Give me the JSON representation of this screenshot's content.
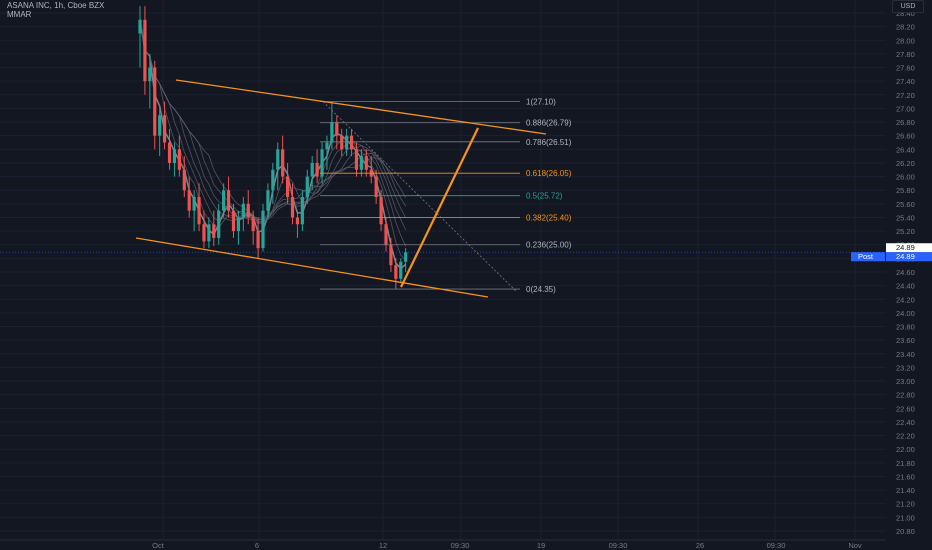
{
  "header": {
    "title": "ASANA INC, 1h, Cboe BZX",
    "indicator": "MMAR"
  },
  "currency_label": "USD",
  "post_label": "Post",
  "colors": {
    "background": "#131722",
    "up": "#26a69a",
    "down": "#ef5350",
    "drawing": "#f7931a",
    "fib_line": "#787b86",
    "price_tag": "#2962ff"
  },
  "chart_data": {
    "type": "candlestick",
    "title": "ASANA INC, 1h, Cboe BZX",
    "ylim": [
      20.8,
      28.5
    ],
    "y_ticks": [
      "28.40",
      "28.20",
      "28.00",
      "27.80",
      "27.60",
      "27.40",
      "27.20",
      "27.00",
      "26.80",
      "26.60",
      "26.40",
      "26.20",
      "26.00",
      "25.80",
      "25.60",
      "25.40",
      "25.20",
      "25.00",
      "24.80",
      "24.60",
      "24.40",
      "24.20",
      "24.00",
      "23.80",
      "23.60",
      "23.40",
      "23.20",
      "23.00",
      "22.80",
      "22.60",
      "22.40",
      "22.20",
      "22.00",
      "21.80",
      "21.60",
      "21.40",
      "21.20",
      "21.00",
      "20.80"
    ],
    "x_ticks": [
      "Oct",
      "6",
      "12",
      "09:30",
      "19",
      "09:30",
      "26",
      "09:30",
      "Nov"
    ],
    "last_price": [
      {
        "label": "24.89",
        "color": "#ffffff"
      },
      {
        "label": "24.89",
        "color": "#2962ff"
      }
    ],
    "fib_levels": [
      {
        "label": "1(27.10)",
        "price": 27.1,
        "color": "#b2b5be"
      },
      {
        "label": "0.886(26.79)",
        "price": 26.79,
        "color": "#b2b5be"
      },
      {
        "label": "0.786(26.51)",
        "price": 26.51,
        "color": "#b2b5be"
      },
      {
        "label": "0.618(26.05)",
        "price": 26.05,
        "color": "#f7931a"
      },
      {
        "label": "0.5(25.72)",
        "price": 25.72,
        "color": "#26a69a"
      },
      {
        "label": "0.382(25.40)",
        "price": 25.4,
        "color": "#f7931a"
      },
      {
        "label": "0.236(25.00)",
        "price": 25.0,
        "color": "#b2b5be"
      },
      {
        "label": "0(24.35)",
        "price": 24.35,
        "color": "#b2b5be"
      }
    ],
    "candles": [
      [
        28.1,
        28.5,
        27.6,
        28.3
      ],
      [
        28.3,
        28.5,
        27.2,
        27.4
      ],
      [
        27.4,
        27.8,
        27.0,
        27.6
      ],
      [
        27.6,
        27.7,
        26.4,
        26.6
      ],
      [
        26.6,
        27.0,
        26.3,
        26.9
      ],
      [
        26.9,
        27.1,
        26.4,
        26.5
      ],
      [
        26.5,
        26.7,
        26.1,
        26.2
      ],
      [
        26.2,
        26.5,
        26.0,
        26.4
      ],
      [
        26.4,
        26.6,
        26.0,
        26.1
      ],
      [
        26.1,
        26.3,
        25.7,
        25.8
      ],
      [
        25.8,
        26.0,
        25.4,
        25.5
      ],
      [
        25.5,
        25.8,
        25.2,
        25.7
      ],
      [
        25.7,
        25.9,
        25.2,
        25.3
      ],
      [
        25.3,
        25.5,
        24.95,
        25.05
      ],
      [
        25.05,
        25.4,
        24.95,
        25.3
      ],
      [
        25.3,
        25.5,
        24.98,
        25.1
      ],
      [
        25.1,
        25.6,
        25.0,
        25.5
      ],
      [
        25.5,
        25.9,
        25.4,
        25.8
      ],
      [
        25.8,
        26.0,
        25.4,
        25.5
      ],
      [
        25.5,
        25.6,
        25.1,
        25.2
      ],
      [
        25.2,
        25.5,
        25.0,
        25.4
      ],
      [
        25.4,
        25.7,
        25.2,
        25.6
      ],
      [
        25.6,
        25.8,
        25.3,
        25.4
      ],
      [
        25.4,
        25.5,
        25.0,
        25.2
      ],
      [
        25.2,
        25.4,
        24.8,
        24.95
      ],
      [
        24.95,
        25.6,
        24.9,
        25.5
      ],
      [
        25.5,
        25.9,
        25.4,
        25.8
      ],
      [
        25.8,
        26.2,
        25.6,
        26.1
      ],
      [
        26.1,
        26.5,
        25.8,
        26.4
      ],
      [
        26.4,
        26.6,
        25.9,
        26.0
      ],
      [
        26.0,
        26.2,
        25.6,
        25.7
      ],
      [
        25.7,
        25.9,
        25.3,
        25.4
      ],
      [
        25.4,
        25.5,
        25.1,
        25.3
      ],
      [
        25.3,
        25.8,
        25.2,
        25.7
      ],
      [
        25.7,
        26.1,
        25.6,
        26.0
      ],
      [
        26.0,
        26.3,
        25.8,
        26.2
      ],
      [
        26.2,
        26.4,
        25.9,
        26.0
      ],
      [
        26.0,
        26.5,
        25.9,
        26.4
      ],
      [
        26.4,
        26.6,
        26.1,
        26.5
      ],
      [
        26.5,
        27.1,
        26.4,
        26.8
      ],
      [
        26.8,
        26.9,
        26.4,
        26.6
      ],
      [
        26.6,
        26.7,
        26.3,
        26.4
      ],
      [
        26.4,
        26.7,
        26.3,
        26.6
      ],
      [
        26.6,
        26.7,
        26.3,
        26.4
      ],
      [
        26.4,
        26.5,
        26.0,
        26.1
      ],
      [
        26.1,
        26.4,
        26.0,
        26.3
      ],
      [
        26.3,
        26.4,
        26.0,
        26.1
      ],
      [
        26.1,
        26.3,
        25.9,
        26.0
      ],
      [
        26.0,
        26.1,
        25.6,
        25.7
      ],
      [
        25.7,
        25.8,
        25.2,
        25.3
      ],
      [
        25.3,
        25.4,
        24.9,
        25.0
      ],
      [
        25.0,
        25.1,
        24.6,
        24.7
      ],
      [
        24.7,
        24.8,
        24.35,
        24.5
      ],
      [
        24.5,
        24.8,
        24.45,
        24.75
      ],
      [
        24.75,
        24.95,
        24.6,
        24.89
      ]
    ]
  }
}
